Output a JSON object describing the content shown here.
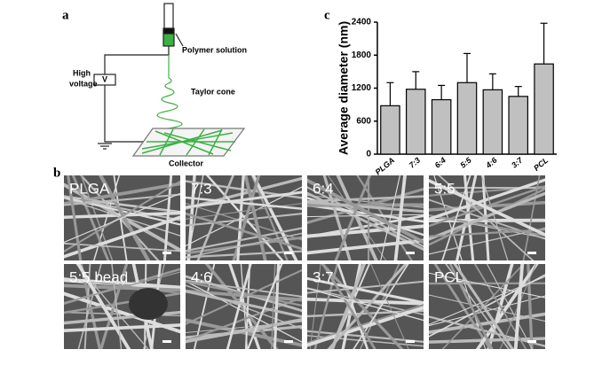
{
  "panels": {
    "a": "a",
    "b": "b",
    "c": "c"
  },
  "diagram": {
    "polymer": "Polymer solution",
    "voltage": [
      "High",
      "voltage"
    ],
    "v": "V",
    "cone": "Taylor cone",
    "collector": "Collector"
  },
  "images": [
    "PLGA",
    "7:3",
    "6:4",
    "5:5",
    "5:5 bead",
    "4:6",
    "3:7",
    "PCL"
  ],
  "chart_data": {
    "type": "bar",
    "y_label": "Average diameter (nm)",
    "categories": [
      "PLGA",
      "7:3",
      "6:4",
      "5:5",
      "4:6",
      "3:7",
      "PCL"
    ],
    "values": [
      880,
      1180,
      990,
      1300,
      1170,
      1050,
      1640
    ],
    "errors": [
      420,
      320,
      260,
      530,
      290,
      180,
      740
    ],
    "color": "#c0c0c0",
    "ylim": [
      0,
      2400
    ],
    "yticks": [
      0,
      600,
      1200,
      1800,
      2400
    ]
  }
}
